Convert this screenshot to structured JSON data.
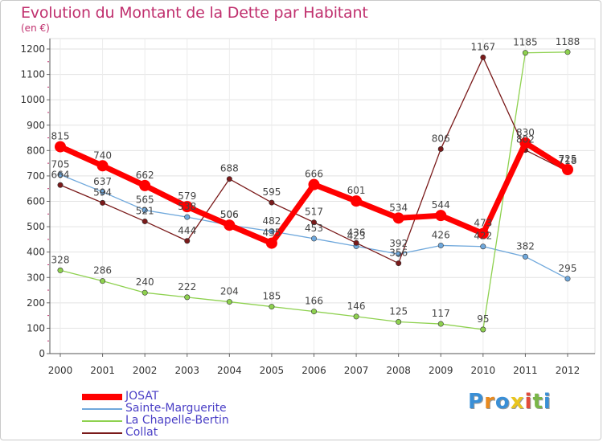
{
  "title": "Evolution du Montant de la Dette par Habitant",
  "unit": "(en €)",
  "logo": {
    "text": "Proxiti",
    "letters": [
      {
        "ch": "P",
        "color": "#3a8fd6"
      },
      {
        "ch": "r",
        "color": "#e98a1e"
      },
      {
        "ch": "o",
        "color": "#3a8fd6"
      },
      {
        "ch": "x",
        "color": "#e9c51e"
      },
      {
        "ch": "i",
        "color": "#e24a3a"
      },
      {
        "ch": "t",
        "color": "#7ab648"
      },
      {
        "ch": "i",
        "color": "#3a8fd6"
      }
    ]
  },
  "chart_data": {
    "type": "line",
    "title": "Evolution du Montant de la Dette par Habitant",
    "ylabel": "(en €)",
    "xlabel": "",
    "x": [
      "2000",
      "2001",
      "2002",
      "2003",
      "2004",
      "2005",
      "2006",
      "2007",
      "2008",
      "2009",
      "2010",
      "2011",
      "2012"
    ],
    "ylim": [
      0,
      1200
    ],
    "yticks": [
      0,
      100,
      200,
      300,
      400,
      500,
      600,
      700,
      800,
      900,
      1000,
      1100,
      1200
    ],
    "grid": true,
    "legend_position": "bottom-left",
    "series": [
      {
        "name": "JOSAT",
        "color": "#ff0000",
        "values": [
          815,
          740,
          662,
          579,
          506,
          435,
          666,
          601,
          534,
          544,
          473,
          830,
          725
        ]
      },
      {
        "name": "Sainte-Marguerite",
        "color": "#6fa8dc",
        "values": [
          705,
          637,
          565,
          538,
          506,
          482,
          453,
          423,
          392,
          426,
          422,
          382,
          295
        ]
      },
      {
        "name": "La Chapelle-Bertin",
        "color": "#8ed14f",
        "values": [
          328,
          286,
          240,
          222,
          204,
          185,
          166,
          146,
          125,
          117,
          95,
          1185,
          1188
        ]
      },
      {
        "name": "Collat",
        "color": "#7a1a1a",
        "values": [
          664,
          594,
          521,
          444,
          688,
          595,
          517,
          436,
          356,
          806,
          1167,
          802,
          718
        ]
      }
    ]
  }
}
